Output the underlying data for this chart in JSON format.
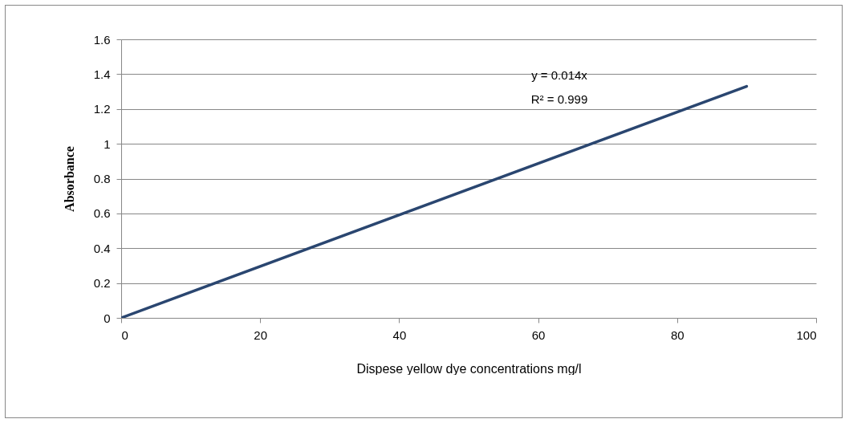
{
  "chart_data": {
    "type": "line",
    "xlabel": "Dispese yellow dye concentrations mg/l",
    "ylabel": "Absorbance",
    "xlim": [
      0,
      100
    ],
    "xticks": [
      0,
      20,
      40,
      60,
      80,
      100
    ],
    "ylim": [
      0,
      1.6
    ],
    "yticks": [
      0,
      0.2,
      0.4,
      0.6,
      0.8,
      1,
      1.2,
      1.4,
      1.6
    ],
    "grid": "y",
    "marker": "none",
    "line_style": "solid",
    "annotations": [
      "y = 0.014x",
      "R² = 0.999"
    ],
    "series": [
      {
        "color": "#2a4670",
        "x": [
          0,
          90
        ],
        "values": [
          0,
          1.33
        ]
      }
    ]
  }
}
